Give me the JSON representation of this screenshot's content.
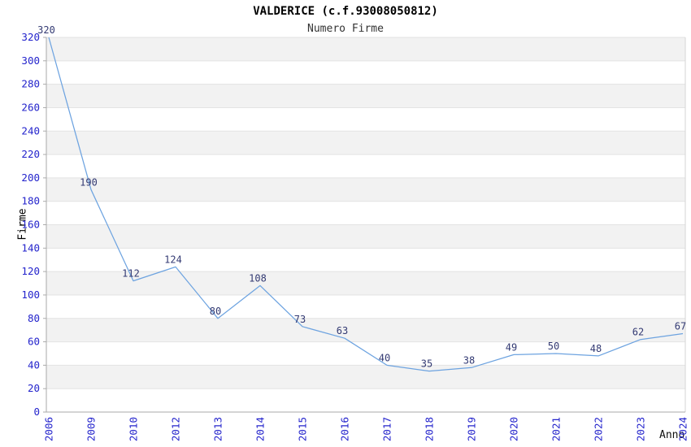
{
  "chart_data": {
    "type": "line",
    "title": "VALDERICE (c.f.93008050812)",
    "subtitle": "Numero Firme",
    "xlabel": "Anno",
    "ylabel": "Firme",
    "categories": [
      "2006",
      "2009",
      "2010",
      "2012",
      "2013",
      "2014",
      "2015",
      "2016",
      "2017",
      "2018",
      "2019",
      "2020",
      "2021",
      "2022",
      "2023",
      "2024"
    ],
    "values": [
      320,
      190,
      112,
      124,
      80,
      108,
      73,
      63,
      40,
      35,
      38,
      49,
      50,
      48,
      62,
      67
    ],
    "ylim": [
      0,
      320
    ],
    "ytick_step": 20,
    "grid": "horizontal-bands-alternating",
    "legend": "none",
    "colors": {
      "line": "#6da3e0",
      "tick_label": "#2424cc",
      "data_label": "#333a73",
      "band": "#f2f2f2",
      "gridline": "#e3e3e3",
      "axis": "#aaaaaa",
      "border": "#d6d6d6",
      "title": "#000000",
      "subtitle": "#333333"
    }
  }
}
